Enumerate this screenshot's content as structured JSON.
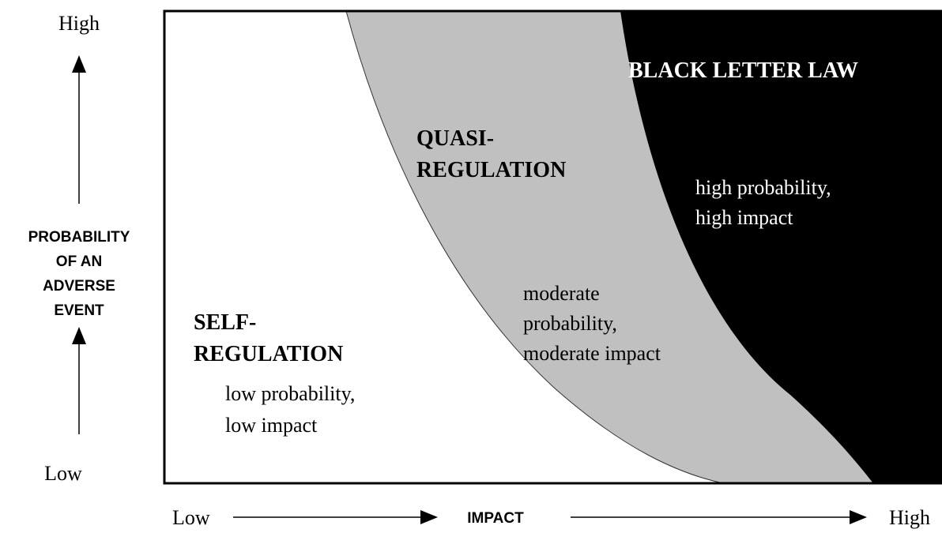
{
  "y_axis": {
    "high": "High",
    "low": "Low",
    "label": [
      "PROBABILITY",
      "OF AN",
      "ADVERSE",
      "EVENT"
    ]
  },
  "x_axis": {
    "low": "Low",
    "label": "IMPACT",
    "high": "High"
  },
  "regions": [
    {
      "title": [
        "SELF-",
        "REGULATION"
      ],
      "description": [
        "low probability,",
        "low impact"
      ]
    },
    {
      "title": [
        "QUASI-",
        "REGULATION"
      ],
      "description": [
        "moderate",
        "probability,",
        "moderate impact"
      ]
    },
    {
      "title": [
        "BLACK LETTER LAW"
      ],
      "description": [
        "high probability,",
        "high impact"
      ]
    }
  ]
}
